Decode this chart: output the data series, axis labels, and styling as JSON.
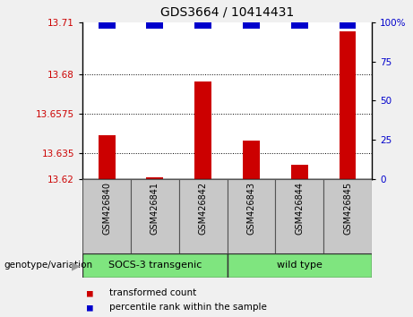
{
  "title": "GDS3664 / 10414431",
  "samples": [
    "GSM426840",
    "GSM426841",
    "GSM426842",
    "GSM426843",
    "GSM426844",
    "GSM426845"
  ],
  "red_values": [
    13.645,
    13.621,
    13.676,
    13.642,
    13.628,
    13.705
  ],
  "blue_values": [
    100,
    100,
    100,
    100,
    100,
    100
  ],
  "ylim_left": [
    13.62,
    13.71
  ],
  "ylim_right": [
    0,
    100
  ],
  "left_ticks": [
    13.62,
    13.635,
    13.6575,
    13.68,
    13.71
  ],
  "left_tick_labels": [
    "13.62",
    "13.635",
    "13.6575",
    "13.68",
    "13.71"
  ],
  "right_ticks": [
    0,
    25,
    50,
    75,
    100
  ],
  "right_tick_labels": [
    "0",
    "25",
    "50",
    "75",
    "100%"
  ],
  "hlines": [
    13.635,
    13.6575,
    13.68
  ],
  "bar_width": 0.35,
  "red_color": "#CC0000",
  "blue_color": "#0000CC",
  "bg_color": "#f0f0f0",
  "plot_bg": "#ffffff",
  "label_bg": "#c8c8c8",
  "group1_label": "SOCS-3 transgenic",
  "group2_label": "wild type",
  "group_color": "#7FE57F",
  "xlabel_color": "#CC0000",
  "ylabel_right_color": "#0000CC",
  "legend_red_label": "transformed count",
  "legend_blue_label": "percentile rank within the sample",
  "genotype_label": "genotype/variation"
}
